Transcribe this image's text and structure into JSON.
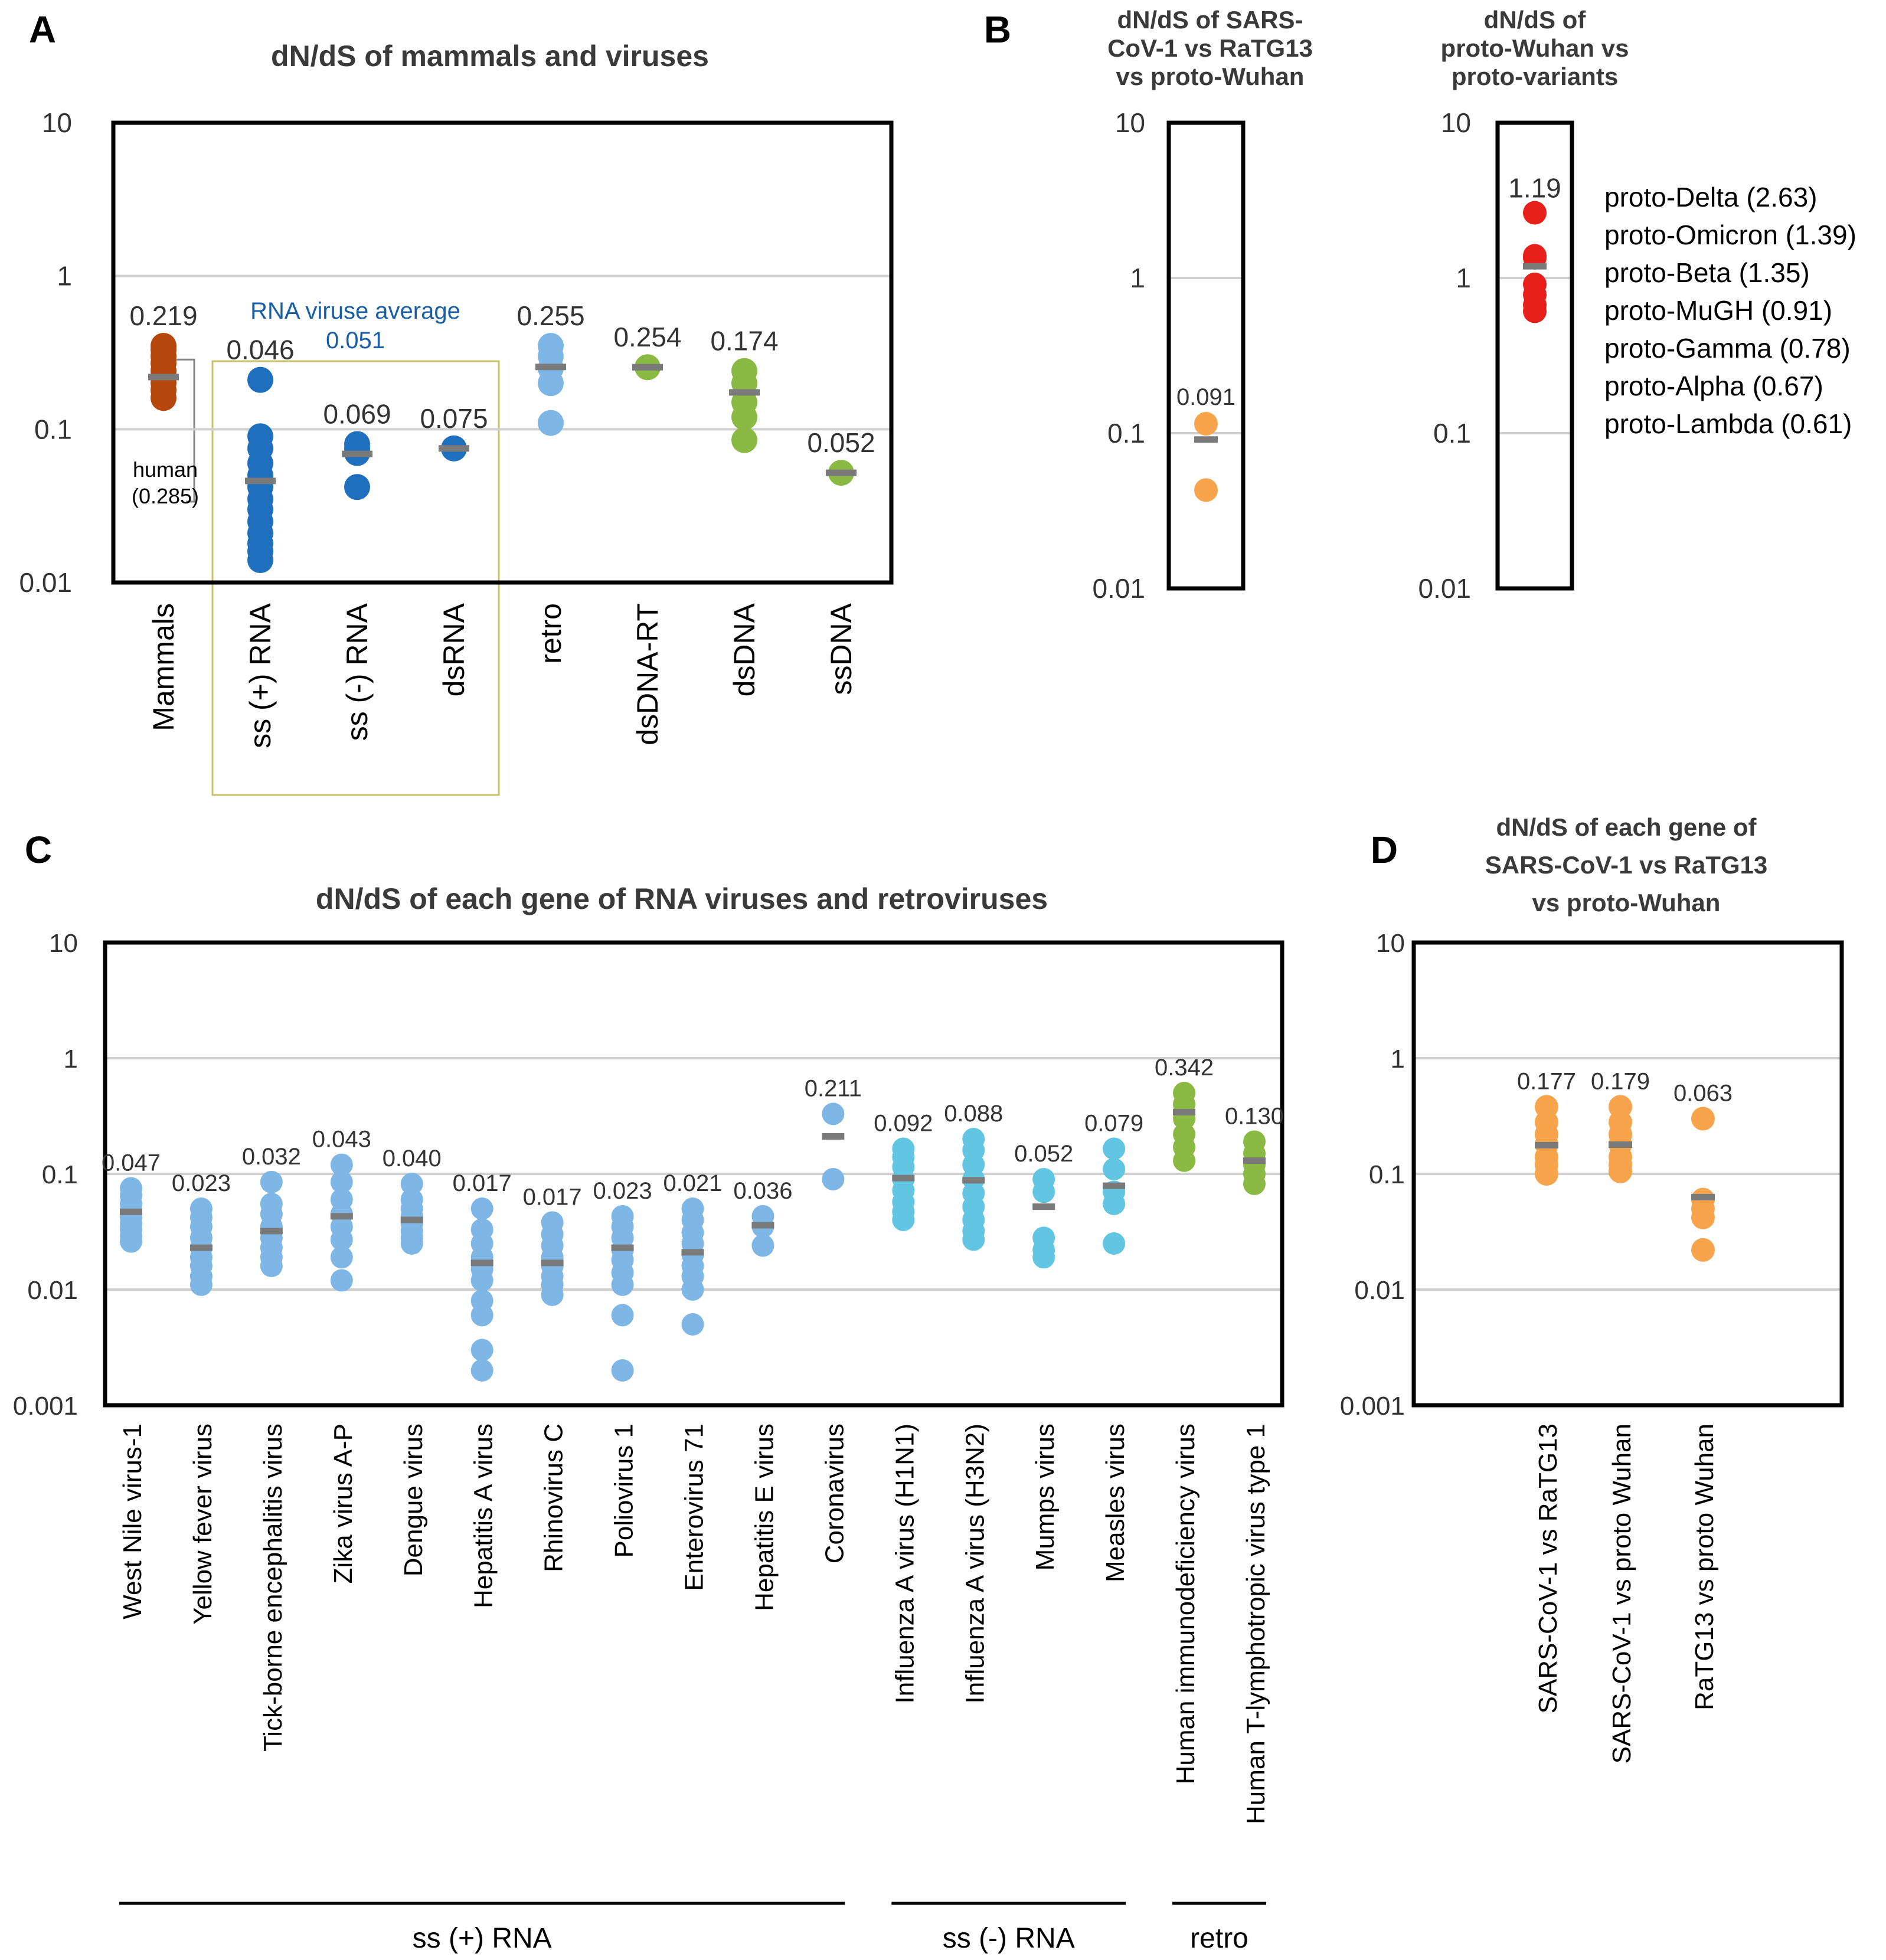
{
  "colors": {
    "brown": "#b5470c",
    "darkblue": "#1f6fbf",
    "lightblue": "#7eb6e6",
    "green": "#8bba44",
    "orange": "#f7a44c",
    "red": "#e8201c",
    "cyan": "#62c6e2",
    "mean": "#7a7a7a",
    "grid": "#cfcfcf",
    "frame": "#000000",
    "rnabox": "#c8c36a"
  },
  "chart_data": [
    {
      "id": "A",
      "type": "scatter",
      "panel_label": "A",
      "title": "dN/dS of mammals and viruses",
      "yscale": "log",
      "ylim": [
        0.01,
        10
      ],
      "yticks": [
        "10",
        "1",
        "0.1",
        "0.01"
      ],
      "categories": [
        "Mammals",
        "ss (+) RNA",
        "ss (-) RNA",
        "dsRNA",
        "retro",
        "dsDNA-RT",
        "dsDNA",
        "ssDNA"
      ],
      "series": [
        {
          "name": "Mammals",
          "color": "brown",
          "mean": 0.219,
          "label": "0.219",
          "points": [
            0.16,
            0.18,
            0.2,
            0.22,
            0.24,
            0.27,
            0.3,
            0.33,
            0.35
          ]
        },
        {
          "name": "ss (+) RNA",
          "color": "darkblue",
          "mean": 0.046,
          "label": "0.046",
          "points": [
            0.21,
            0.09,
            0.075,
            0.06,
            0.05,
            0.042,
            0.035,
            0.03,
            0.025,
            0.021,
            0.018,
            0.016,
            0.014
          ]
        },
        {
          "name": "ss (-) RNA",
          "color": "darkblue",
          "mean": 0.069,
          "label": "0.069",
          "points": [
            0.08,
            0.075,
            0.07,
            0.042
          ]
        },
        {
          "name": "dsRNA",
          "color": "darkblue",
          "mean": 0.075,
          "label": "0.075",
          "points": [
            0.075
          ]
        },
        {
          "name": "retro",
          "color": "lightblue",
          "mean": 0.255,
          "label": "0.255",
          "points": [
            0.35,
            0.3,
            0.25,
            0.2,
            0.11
          ]
        },
        {
          "name": "dsDNA-RT",
          "color": "green",
          "mean": 0.254,
          "label": "0.254",
          "points": [
            0.254
          ]
        },
        {
          "name": "dsDNA",
          "color": "green",
          "mean": 0.174,
          "label": "0.174",
          "points": [
            0.24,
            0.2,
            0.15,
            0.12,
            0.085
          ]
        },
        {
          "name": "ssDNA",
          "color": "green",
          "mean": 0.052,
          "label": "0.052",
          "points": [
            0.052
          ]
        }
      ],
      "annotations": {
        "rna_average_title": "RNA viruse average",
        "rna_average_value": "0.051",
        "human_label": "human",
        "human_value": "(0.285)"
      }
    },
    {
      "id": "B1",
      "type": "scatter",
      "panel_label": "B",
      "title_lines": [
        "dN/dS of SARS-",
        "CoV-1 vs RaTG13",
        "vs proto-Wuhan"
      ],
      "yscale": "log",
      "ylim": [
        0.01,
        10
      ],
      "yticks": [
        "10",
        "1",
        "0.1",
        "0.01"
      ],
      "series": [
        {
          "name": "SARS-CoV-1 vs RaTG13 vs proto-Wuhan",
          "color": "orange",
          "mean": 0.091,
          "label": "0.091",
          "points": [
            0.115,
            0.043
          ]
        }
      ]
    },
    {
      "id": "B2",
      "type": "scatter",
      "title_lines": [
        "dN/dS of",
        "proto-Wuhan vs",
        "proto-variants"
      ],
      "yscale": "log",
      "ylim": [
        0.01,
        10
      ],
      "yticks": [
        "10",
        "1",
        "0.1",
        "0.01"
      ],
      "series": [
        {
          "name": "proto-Wuhan vs proto-variants",
          "color": "red",
          "mean": 1.19,
          "label": "1.19",
          "points": [
            2.63,
            1.39,
            1.35,
            0.91,
            0.78,
            0.67,
            0.61
          ]
        }
      ],
      "legend": [
        "proto-Delta (2.63)",
        "proto-Omicron (1.39)",
        "proto-Beta (1.35)",
        "proto-MuGH (0.91)",
        "proto-Gamma (0.78)",
        "proto-Alpha (0.67)",
        "proto-Lambda (0.61)"
      ]
    },
    {
      "id": "C",
      "type": "scatter",
      "panel_label": "C",
      "title": "dN/dS of each gene of RNA viruses and retroviruses",
      "yscale": "log",
      "ylim": [
        0.001,
        10
      ],
      "yticks": [
        "10",
        "1",
        "0.1",
        "0.01",
        "0.001"
      ],
      "categories": [
        "West Nile virus-1",
        "Yellow fever virus",
        "Tick-borne encephalitis virus",
        "Zika virus A-P",
        "Dengue virus",
        "Hepatitis A virus",
        "Rhinovirus C",
        "Poliovirus 1",
        "Enterovirus 71",
        "Hepatitis E virus",
        "Coronavirus",
        "Influenza A virus (H1N1)",
        "Influenza A virus (H3N2)",
        "Mumps virus",
        "Measles virus",
        "Human immunodeficiency virus",
        "Human T-lymphotropic virus type 1"
      ],
      "series": [
        {
          "name": "West Nile virus-1",
          "color": "lightblue",
          "mean": 0.047,
          "label": "0.047",
          "points": [
            0.075,
            0.065,
            0.055,
            0.048,
            0.042,
            0.037,
            0.033,
            0.029,
            0.026
          ]
        },
        {
          "name": "Yellow fever virus",
          "color": "lightblue",
          "mean": 0.023,
          "label": "0.023",
          "points": [
            0.05,
            0.042,
            0.035,
            0.028,
            0.023,
            0.019,
            0.016,
            0.013,
            0.011
          ]
        },
        {
          "name": "Tick-borne encephalitis virus",
          "color": "lightblue",
          "mean": 0.032,
          "label": "0.032",
          "points": [
            0.085,
            0.055,
            0.045,
            0.035,
            0.028,
            0.023,
            0.019,
            0.016
          ]
        },
        {
          "name": "Zika virus A-P",
          "color": "lightblue",
          "mean": 0.043,
          "label": "0.043",
          "points": [
            0.12,
            0.085,
            0.06,
            0.045,
            0.035,
            0.027,
            0.019,
            0.012
          ]
        },
        {
          "name": "Dengue virus",
          "color": "lightblue",
          "mean": 0.04,
          "label": "0.040",
          "points": [
            0.082,
            0.06,
            0.05,
            0.043,
            0.037,
            0.032,
            0.028,
            0.025
          ]
        },
        {
          "name": "Hepatitis A virus",
          "color": "lightblue",
          "mean": 0.017,
          "label": "0.017",
          "points": [
            0.05,
            0.033,
            0.025,
            0.019,
            0.015,
            0.012,
            0.008,
            0.006,
            0.003,
            0.002
          ]
        },
        {
          "name": "Rhinovirus C",
          "color": "lightblue",
          "mean": 0.017,
          "label": "0.017",
          "points": [
            0.038,
            0.03,
            0.024,
            0.019,
            0.016,
            0.013,
            0.011,
            0.009
          ]
        },
        {
          "name": "Poliovirus 1",
          "color": "lightblue",
          "mean": 0.023,
          "label": "0.023",
          "points": [
            0.043,
            0.035,
            0.028,
            0.022,
            0.018,
            0.014,
            0.011,
            0.006,
            0.002
          ]
        },
        {
          "name": "Enterovirus 71",
          "color": "lightblue",
          "mean": 0.021,
          "label": "0.021",
          "points": [
            0.05,
            0.04,
            0.031,
            0.025,
            0.02,
            0.016,
            0.013,
            0.01,
            0.005
          ]
        },
        {
          "name": "Hepatitis E virus",
          "color": "lightblue",
          "mean": 0.036,
          "label": "0.036",
          "points": [
            0.043,
            0.035,
            0.024
          ]
        },
        {
          "name": "Coronavirus",
          "color": "lightblue",
          "mean": 0.211,
          "label": "0.211",
          "points": [
            0.33,
            0.09
          ]
        },
        {
          "name": "Influenza A virus (H1N1)",
          "color": "cyan",
          "mean": 0.092,
          "label": "0.092",
          "points": [
            0.165,
            0.14,
            0.115,
            0.09,
            0.072,
            0.057,
            0.047,
            0.04
          ]
        },
        {
          "name": "Influenza A virus (H3N2)",
          "color": "cyan",
          "mean": 0.088,
          "label": "0.088",
          "points": [
            0.2,
            0.16,
            0.12,
            0.09,
            0.068,
            0.052,
            0.04,
            0.032,
            0.027
          ]
        },
        {
          "name": "Mumps virus",
          "color": "cyan",
          "mean": 0.052,
          "label": "0.052",
          "points": [
            0.09,
            0.07,
            0.028,
            0.022,
            0.019
          ]
        },
        {
          "name": "Measles virus",
          "color": "cyan",
          "mean": 0.079,
          "label": "0.079",
          "points": [
            0.165,
            0.11,
            0.07,
            0.055,
            0.025
          ]
        },
        {
          "name": "Human immunodeficiency virus",
          "color": "green",
          "mean": 0.342,
          "label": "0.342",
          "points": [
            0.5,
            0.4,
            0.3,
            0.22,
            0.17,
            0.13
          ]
        },
        {
          "name": "Human T-lymphotropic virus type 1",
          "color": "green",
          "mean": 0.13,
          "label": "0.130",
          "points": [
            0.19,
            0.15,
            0.12,
            0.1,
            0.082
          ]
        }
      ],
      "groups": [
        {
          "name": "ss (+) RNA",
          "from": 0,
          "to": 10
        },
        {
          "name": "ss (-) RNA",
          "from": 11,
          "to": 14
        },
        {
          "name": "retro",
          "from": 15,
          "to": 16
        }
      ]
    },
    {
      "id": "D",
      "type": "scatter",
      "panel_label": "D",
      "title_lines": [
        "dN/dS of each gene of",
        "SARS-CoV-1 vs RaTG13",
        "vs proto-Wuhan"
      ],
      "yscale": "log",
      "ylim": [
        0.001,
        10
      ],
      "yticks": [
        "10",
        "1",
        "0.1",
        "0.01",
        "0.001"
      ],
      "categories": [
        "SARS-CoV-1 vs RaTG13",
        "SARS-CoV-1 vs proto Wuhan",
        "RaTG13 vs proto Wuhan"
      ],
      "series": [
        {
          "name": "SARS-CoV-1 vs RaTG13",
          "color": "orange",
          "mean": 0.177,
          "label": "0.177",
          "points": [
            0.38,
            0.28,
            0.22,
            0.18,
            0.14,
            0.12,
            0.1
          ]
        },
        {
          "name": "SARS-CoV-1 vs proto Wuhan",
          "color": "orange",
          "mean": 0.179,
          "label": "0.179",
          "points": [
            0.38,
            0.28,
            0.22,
            0.18,
            0.14,
            0.12,
            0.105
          ]
        },
        {
          "name": "RaTG13 vs proto Wuhan",
          "color": "orange",
          "mean": 0.063,
          "label": "0.063",
          "points": [
            0.3,
            0.06,
            0.05,
            0.042,
            0.022
          ]
        }
      ]
    }
  ]
}
